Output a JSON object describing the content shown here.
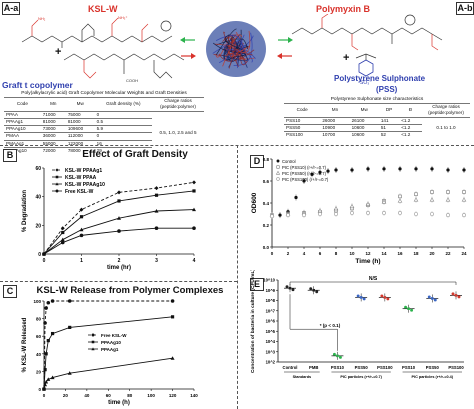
{
  "panel_a": {
    "letters": [
      "A-a",
      "A-b"
    ],
    "ksl_title": "KSL-W",
    "polymyxin_title": "Polymyxin B",
    "graft_title": "Graft t copolymer",
    "pss_title": "Polystyrene Sulphonate",
    "pss_abbr": "(PSS)",
    "plus": "+",
    "table1": {
      "caption": "Poly(alkylacrylic acid) Graft Copolymer Molecular Weights and Graft Densities",
      "headers": [
        "Code",
        "Mn",
        "Mw",
        "Graft density (%)",
        "Charge ratios (peptide:polymer)"
      ],
      "rows": [
        [
          "PPAA",
          "71000",
          "75000",
          "0"
        ],
        [
          "PPAAg1",
          "81000",
          "81000",
          "0.5"
        ],
        [
          "PPAAg10",
          "73000",
          "109600",
          "5.9"
        ],
        [
          "PMAA",
          "36000",
          "112000",
          "0"
        ],
        [
          "PMAAg1",
          "55000",
          "122000",
          "16"
        ],
        [
          "PMAAg10",
          "72000",
          "78000",
          "29"
        ]
      ],
      "charge_ratio_text": "0.5, 1.0, 2.5 and 5"
    },
    "table2": {
      "caption": "Polystyrene Sulphonate size characteristics",
      "headers": [
        "Code",
        "Mn",
        "Mw",
        "DP",
        "Đ",
        "Charge ratios (peptide:polymer)"
      ],
      "rows": [
        [
          "PSS10",
          "26000",
          "26100",
          "141",
          "<1.2"
        ],
        [
          "PSS50",
          "10900",
          "10600",
          "51",
          "<1.2"
        ],
        [
          "PSS100",
          "10700",
          "10600",
          "52",
          "<1.2"
        ]
      ],
      "charge_ratio_text": "0.1 to 1.0"
    }
  },
  "panel_b": {
    "letter": "B",
    "chart_data": {
      "type": "line",
      "title": "Effect of Graft Density",
      "xlabel": "time (hr)",
      "ylabel": "% Degradation",
      "xlim": [
        0,
        4
      ],
      "ylim": [
        0,
        60
      ],
      "x_ticks": [
        "0",
        "1",
        "2",
        "3",
        "4"
      ],
      "y_ticks": [
        "0",
        "20",
        "40",
        "60"
      ],
      "series": [
        {
          "name": "KSL-W PPAAg1",
          "x": [
            0,
            0.5,
            1,
            2,
            3,
            4
          ],
          "values": [
            0,
            18,
            31,
            43,
            46,
            50
          ],
          "style": "dash",
          "marker": "diamond"
        },
        {
          "name": "KSL-W PPAA",
          "x": [
            0,
            0.5,
            1,
            2,
            3,
            4
          ],
          "values": [
            0,
            15,
            26,
            37,
            41,
            44
          ],
          "style": "solid",
          "marker": "square"
        },
        {
          "name": "KSL-W PPAAg10",
          "x": [
            0,
            0.5,
            1,
            2,
            3,
            4
          ],
          "values": [
            0,
            10,
            17,
            25,
            30,
            31
          ],
          "style": "solid",
          "marker": "triangle"
        },
        {
          "name": "Free KSL-W",
          "x": [
            0,
            0.5,
            1,
            2,
            3,
            4
          ],
          "values": [
            0,
            8,
            13,
            16,
            18,
            18
          ],
          "style": "solid",
          "marker": "circle"
        }
      ],
      "legend_position": "top-left"
    }
  },
  "panel_c": {
    "letter": "C",
    "chart_data": {
      "type": "line",
      "title": "KSL-W Release from Polymer Complexes",
      "xlabel": "time (h)",
      "ylabel": "% KSL-W Released",
      "xlim": [
        0,
        140
      ],
      "ylim": [
        0,
        100
      ],
      "x_ticks": [
        "0",
        "20",
        "40",
        "60",
        "80",
        "100",
        "120",
        "140"
      ],
      "y_ticks": [
        "0",
        "20",
        "40",
        "60",
        "80",
        "100"
      ],
      "series": [
        {
          "name": "Free KSL-W",
          "x": [
            0,
            1,
            2,
            4,
            8,
            24,
            120
          ],
          "values": [
            0,
            75,
            92,
            98,
            100,
            100,
            100
          ],
          "style": "dash",
          "marker": "circle"
        },
        {
          "name": "PPAAg10",
          "x": [
            0,
            1,
            2,
            4,
            8,
            24,
            120
          ],
          "values": [
            0,
            22,
            40,
            55,
            63,
            70,
            82
          ],
          "style": "solid",
          "marker": "square"
        },
        {
          "name": "PPAAg1",
          "x": [
            0,
            1,
            2,
            4,
            8,
            24,
            120
          ],
          "values": [
            0,
            5,
            8,
            11,
            13,
            18,
            35
          ],
          "style": "solid",
          "marker": "triangle"
        }
      ],
      "legend_position": "center"
    }
  },
  "panel_d": {
    "letter": "D",
    "chart_data": {
      "type": "line",
      "xlabel": "Time (h)",
      "ylabel": "OD600",
      "xlim": [
        0,
        24
      ],
      "ylim": [
        0,
        0.8
      ],
      "x_ticks": [
        "0",
        "2",
        "4",
        "6",
        "8",
        "10",
        "12",
        "14",
        "16",
        "18",
        "20",
        "22",
        "24"
      ],
      "y_ticks": [
        "0.0",
        "0.2",
        "0.4",
        "0.6",
        "0.8"
      ],
      "series": [
        {
          "name": "Control",
          "x": [
            0,
            1,
            2,
            3,
            4,
            5,
            6,
            7,
            8,
            10,
            12,
            14,
            16,
            18,
            20,
            22,
            24
          ],
          "values": [
            0.28,
            0.29,
            0.32,
            0.45,
            0.6,
            0.66,
            0.68,
            0.69,
            0.7,
            0.7,
            0.71,
            0.71,
            0.71,
            0.71,
            0.71,
            0.7,
            0.7
          ],
          "marker": "filled-circle"
        },
        {
          "name": "PIC (PSS10) (r+/r-=0.7)",
          "x": [
            0,
            2,
            4,
            6,
            8,
            10,
            12,
            14,
            16,
            18,
            20,
            22,
            24
          ],
          "values": [
            0.29,
            0.3,
            0.31,
            0.32,
            0.33,
            0.35,
            0.38,
            0.42,
            0.46,
            0.48,
            0.5,
            0.5,
            0.5
          ],
          "marker": "open-square"
        },
        {
          "name": "PIC (PSS50) (r+/r-=0.7)",
          "x": [
            0,
            2,
            4,
            6,
            8,
            10,
            12,
            14,
            16,
            18,
            20,
            22,
            24
          ],
          "values": [
            0.29,
            0.3,
            0.31,
            0.33,
            0.35,
            0.37,
            0.39,
            0.41,
            0.42,
            0.43,
            0.43,
            0.43,
            0.43
          ],
          "marker": "open-triangle"
        },
        {
          "name": "PIC (PSS100) (r+/r-=0.7)",
          "x": [
            0,
            2,
            4,
            6,
            8,
            10,
            12,
            14,
            16,
            18,
            20,
            22,
            24
          ],
          "values": [
            0.28,
            0.29,
            0.29,
            0.3,
            0.3,
            0.31,
            0.31,
            0.31,
            0.31,
            0.3,
            0.3,
            0.29,
            0.29
          ],
          "marker": "open-circle"
        }
      ],
      "legend_position": "top-left"
    }
  },
  "panel_e": {
    "letter": "E",
    "chart_data": {
      "type": "scatter",
      "ylabel": "Concentration of bacteria in culture (CFU/mL)",
      "y_scale": "log",
      "ylim_exponent": [
        2,
        10
      ],
      "y_ticks": [
        "10^2",
        "10^3",
        "10^4",
        "10^5",
        "10^6",
        "10^7",
        "10^8",
        "10^9",
        "10^10"
      ],
      "categories": [
        "Control",
        "PMB",
        "PSS10",
        "PSS50",
        "PSS100",
        "PSS10",
        "PSS50",
        "PSS100"
      ],
      "groups": [
        {
          "label": "Standards",
          "categories": [
            0,
            1
          ]
        },
        {
          "label": "PIC particles (r+/r-=0.7)",
          "categories": [
            2,
            3,
            4
          ]
        },
        {
          "label": "PIC particles (r+/r-=0.4)",
          "categories": [
            5,
            6,
            7
          ]
        }
      ],
      "log10_means": [
        9.2,
        9.0,
        2.6,
        8.3,
        8.3,
        7.2,
        8.2,
        8.5
      ],
      "point_colors": [
        "#222222",
        "#222222",
        "#2bb24c",
        "#3a66c4",
        "#d23a2f",
        "#2bb24c",
        "#3a66c4",
        "#d23a2f"
      ],
      "annotations": [
        "N/S",
        "* (p < 0.1)"
      ]
    }
  }
}
